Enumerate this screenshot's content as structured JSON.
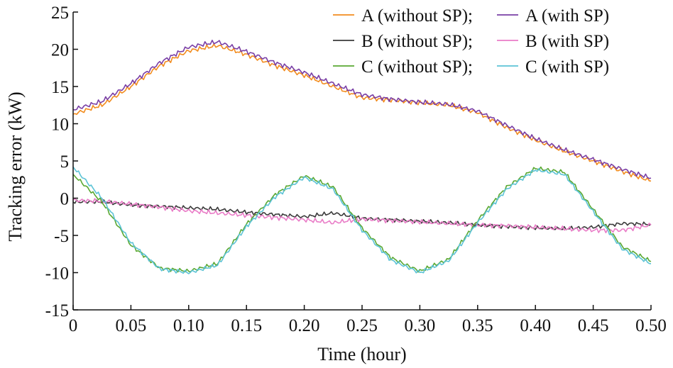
{
  "chart_data": {
    "type": "line",
    "title": "",
    "xlabel": "Time (hour)",
    "ylabel": "Tracking error (kW)",
    "xlim": [
      0,
      0.5
    ],
    "ylim": [
      -15,
      25
    ],
    "xticks": [
      0,
      0.05,
      0.1,
      0.15,
      0.2,
      0.25,
      0.3,
      0.35,
      0.4,
      0.45,
      0.5
    ],
    "xtick_labels": [
      "0",
      "0.05",
      "0.10",
      "0.15",
      "0.20",
      "0.25",
      "0.30",
      "0.35",
      "0.40",
      "0.45",
      "0.50"
    ],
    "yticks": [
      -15,
      -10,
      -5,
      0,
      5,
      10,
      15,
      20,
      25
    ],
    "ytick_labels": [
      "-15",
      "-10",
      "-5",
      "0",
      "5",
      "10",
      "15",
      "20",
      "25"
    ],
    "grid": false,
    "legend_position": "top-right",
    "legend_separator": ";",
    "x": [
      0,
      0.025,
      0.05,
      0.075,
      0.1,
      0.125,
      0.15,
      0.175,
      0.2,
      0.225,
      0.25,
      0.275,
      0.3,
      0.325,
      0.35,
      0.375,
      0.4,
      0.425,
      0.45,
      0.475,
      0.5
    ],
    "series": [
      {
        "name": "A (without SP)",
        "color": "#f28c1e",
        "values": [
          11.3,
          12.5,
          15.0,
          17.8,
          19.8,
          20.5,
          19.3,
          17.8,
          16.5,
          15.0,
          13.5,
          13.2,
          12.8,
          12.5,
          11.5,
          9.5,
          7.8,
          6.3,
          5.0,
          3.6,
          2.3
        ]
      },
      {
        "name": "A (with SP)",
        "color": "#7a3fa6",
        "values": [
          11.9,
          13.0,
          15.4,
          18.2,
          20.3,
          21.0,
          19.7,
          18.2,
          16.9,
          15.4,
          13.9,
          13.3,
          12.9,
          12.6,
          11.7,
          9.8,
          8.0,
          6.5,
          5.2,
          3.9,
          2.7
        ]
      },
      {
        "name": "B (without SP)",
        "color": "#3a3a3a",
        "values": [
          -0.5,
          -0.5,
          -0.9,
          -1.1,
          -1.3,
          -1.5,
          -1.9,
          -2.2,
          -2.5,
          -2.0,
          -2.7,
          -2.9,
          -3.1,
          -3.3,
          -3.6,
          -3.8,
          -4.0,
          -4.1,
          -3.9,
          -3.4,
          -3.5
        ]
      },
      {
        "name": "B (with SP)",
        "color": "#e97cc7",
        "values": [
          -0.3,
          -0.4,
          -0.8,
          -1.2,
          -1.7,
          -2.0,
          -2.3,
          -2.6,
          -2.9,
          -3.3,
          -2.8,
          -3.0,
          -3.2,
          -3.4,
          -3.6,
          -3.7,
          -3.9,
          -4.1,
          -4.3,
          -4.3,
          -3.6
        ]
      },
      {
        "name": "C (without SP)",
        "color": "#5aa832",
        "values": [
          3.2,
          -0.5,
          -6.3,
          -9.4,
          -9.8,
          -8.8,
          -3.5,
          0.5,
          3.0,
          1.5,
          -4.0,
          -8.0,
          -9.8,
          -8.2,
          -3.0,
          1.5,
          4.0,
          3.5,
          -1.5,
          -6.5,
          -8.5
        ]
      },
      {
        "name": "C (with SP)",
        "color": "#5cc3d6",
        "values": [
          4.2,
          0.0,
          -6.0,
          -9.5,
          -10.0,
          -9.0,
          -3.8,
          0.2,
          2.8,
          1.2,
          -4.3,
          -8.3,
          -10.0,
          -8.4,
          -3.3,
          1.2,
          3.8,
          3.2,
          -1.8,
          -6.8,
          -8.8
        ]
      }
    ]
  }
}
